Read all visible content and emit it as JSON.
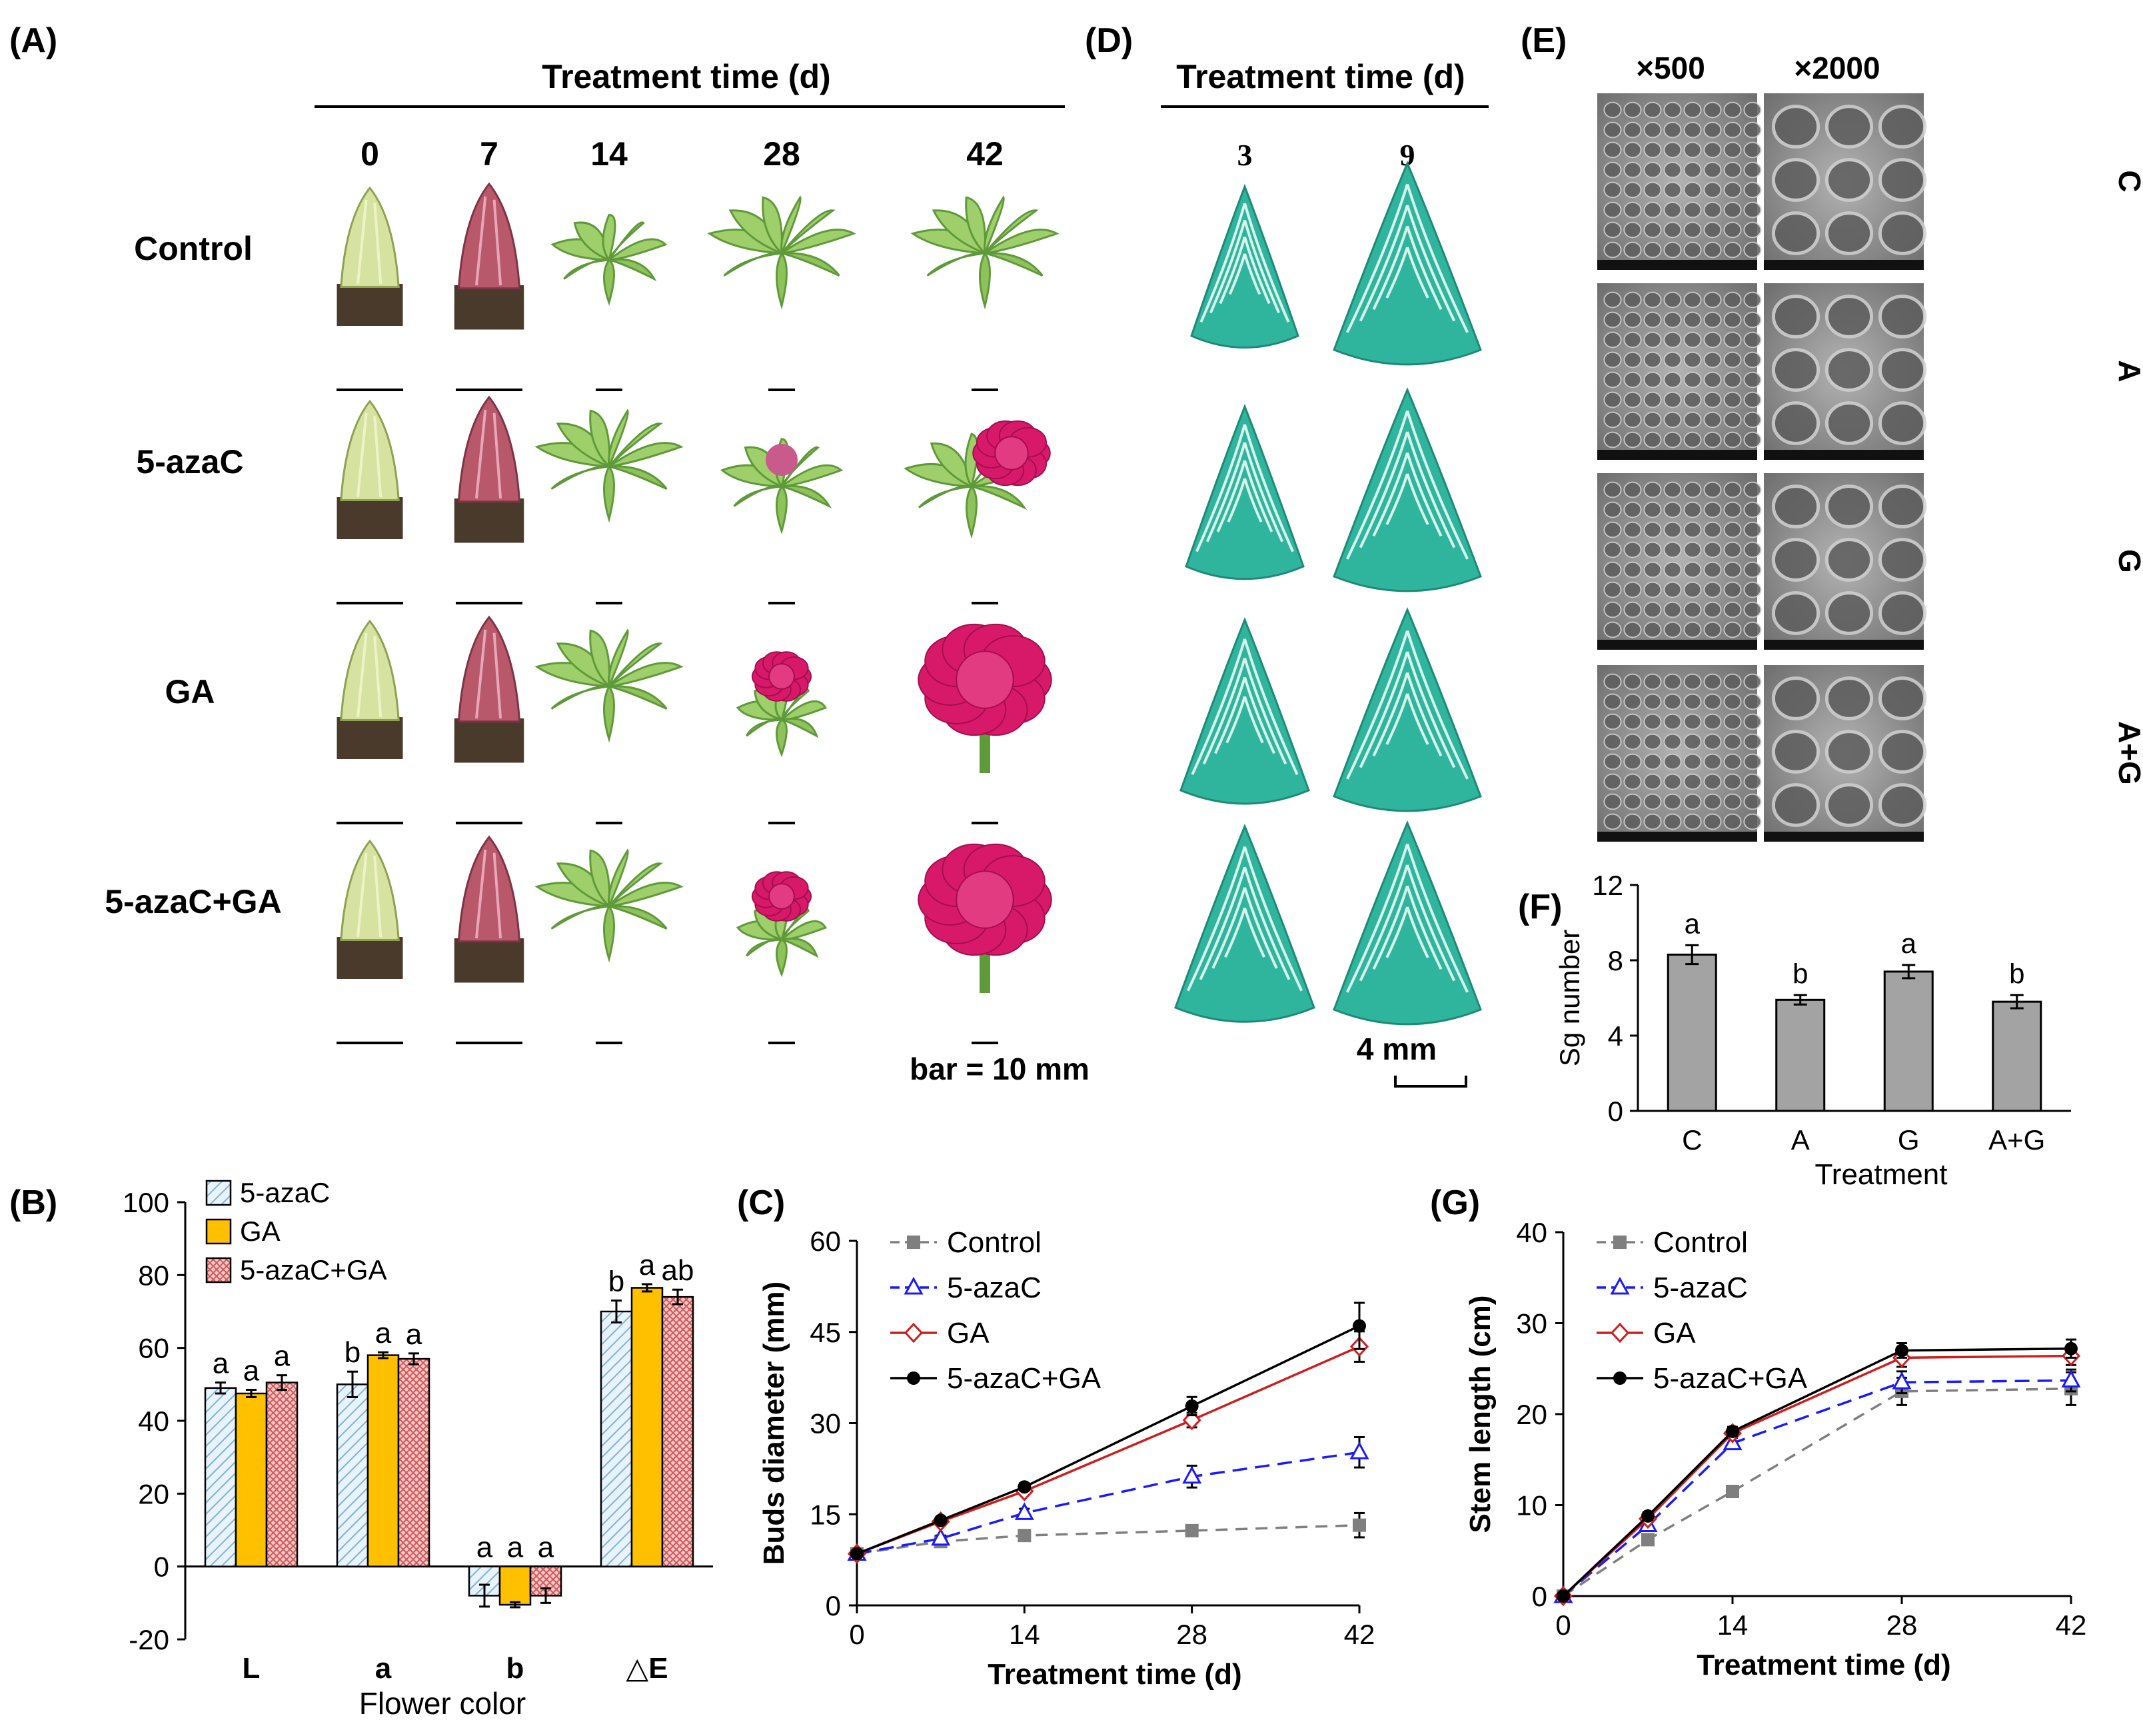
{
  "colors": {
    "plant_green": "#9fcf6a",
    "plant_dark": "#5f9a3a",
    "bud_red": "#b8586a",
    "flower_magenta": "#d8196a",
    "stain_teal": "#2fb59e",
    "sem_gray": "#8e8e8e",
    "bar_gray": "#a3a3a3",
    "azac_blue_hatch": "#9fc7e6",
    "ga_gold": "#ffc000",
    "azacga_red_hatch": "#e88f8f",
    "control_line": "#7f7f7f",
    "azac_line": "#1a1aff",
    "ga_line": "#cc1f1f",
    "azacga_line": "#000000"
  },
  "panel_A": {
    "label": "(A)",
    "header": "Treatment time (d)",
    "days": [
      "0",
      "7",
      "14",
      "28",
      "42"
    ],
    "rows": [
      {
        "name": "Control",
        "stages": [
          "bud",
          "bud-red",
          "leafy-small",
          "leafy",
          "leafy"
        ]
      },
      {
        "name": "5-azaC",
        "stages": [
          "bud",
          "bud-red",
          "leafy",
          "leafy-bud",
          "leafy-flower"
        ]
      },
      {
        "name": "GA",
        "stages": [
          "bud",
          "bud-red",
          "leafy",
          "flower-bud",
          "flower"
        ]
      },
      {
        "name": "5-azaC+GA",
        "stages": [
          "bud",
          "bud-red",
          "leafy",
          "flower-bud",
          "flower"
        ]
      }
    ],
    "scale_note": "bar = 10 mm"
  },
  "panel_D": {
    "label": "(D)",
    "header": "Treatment time (d)",
    "days": [
      "3",
      "9"
    ],
    "scale_note": "4 mm"
  },
  "panel_E": {
    "label": "(E)",
    "magnifications": [
      "×500",
      "×2000"
    ],
    "rows": [
      "C",
      "A",
      "G",
      "A+G"
    ]
  },
  "chart_data": [
    {
      "id": "F",
      "panel_label": "(F)",
      "type": "bar",
      "categories": [
        "C",
        "A",
        "G",
        "A+G"
      ],
      "values": [
        8.3,
        5.9,
        7.4,
        5.8
      ],
      "errors": [
        0.5,
        0.25,
        0.35,
        0.35
      ],
      "letters": [
        "a",
        "b",
        "a",
        "b"
      ],
      "xlabel": "Treatment",
      "ylabel": "Sg number",
      "ylim": [
        0,
        12
      ],
      "yticks": [
        "0",
        "4",
        "8",
        "12"
      ]
    },
    {
      "id": "B",
      "panel_label": "(B)",
      "type": "bar",
      "categories": [
        "L",
        "a",
        "b",
        "△E"
      ],
      "series": [
        {
          "name": "5-azaC",
          "values": [
            49,
            50,
            -8,
            70
          ],
          "errors": [
            1.5,
            3.5,
            3,
            3
          ],
          "letters": [
            "a",
            "b",
            "a",
            "b"
          ]
        },
        {
          "name": "GA",
          "values": [
            47.5,
            58,
            -10.5,
            76.5
          ],
          "errors": [
            1.0,
            0.8,
            0.7,
            1.0
          ],
          "letters": [
            "a",
            "a",
            "a",
            "a"
          ]
        },
        {
          "name": "5-azaC+GA",
          "values": [
            50.5,
            57,
            -8,
            74
          ],
          "errors": [
            2.0,
            1.5,
            2.0,
            2.0
          ],
          "letters": [
            "a",
            "a",
            "a",
            "ab"
          ]
        }
      ],
      "xlabel": "Flower color",
      "ylabel": "",
      "ylim": [
        -20,
        100
      ],
      "yticks": [
        "-20",
        "0",
        "20",
        "40",
        "60",
        "80",
        "100"
      ],
      "legend": "top-left"
    },
    {
      "id": "C",
      "panel_label": "(C)",
      "type": "line",
      "x": [
        0,
        7,
        14,
        28,
        42
      ],
      "series": [
        {
          "name": "Control",
          "values": [
            8.5,
            10.5,
            11.5,
            12.3,
            13.2
          ],
          "errors": [
            0.3,
            0.5,
            0.5,
            0.8,
            2.0
          ],
          "marker": "square"
        },
        {
          "name": "5-azaC",
          "values": [
            8.5,
            11.0,
            15.2,
            21.2,
            25.2
          ],
          "errors": [
            0.3,
            0.5,
            0.7,
            1.8,
            2.5
          ],
          "marker": "triangle"
        },
        {
          "name": "GA",
          "values": [
            8.5,
            13.8,
            18.8,
            30.5,
            42.6
          ],
          "errors": [
            0.3,
            0.5,
            0.6,
            1.2,
            2.5
          ],
          "marker": "diamond"
        },
        {
          "name": "5-azaC+GA",
          "values": [
            8.5,
            14.0,
            19.5,
            32.8,
            46.0
          ],
          "errors": [
            0.3,
            0.5,
            0.6,
            1.5,
            3.8
          ],
          "marker": "circle"
        }
      ],
      "xlabel": "Treatment time (d)",
      "ylabel": "Buds diameter (mm)",
      "xticks": [
        "0",
        "14",
        "28",
        "42"
      ],
      "yticks": [
        "0",
        "15",
        "30",
        "45",
        "60"
      ],
      "xlim": [
        0,
        42
      ],
      "ylim": [
        0,
        60
      ],
      "legend": "top-left"
    },
    {
      "id": "G",
      "panel_label": "(G)",
      "type": "line",
      "x": [
        0,
        7,
        14,
        28,
        42
      ],
      "series": [
        {
          "name": "Control",
          "values": [
            0,
            6.2,
            11.5,
            22.5,
            22.8
          ],
          "errors": [
            0.2,
            0.4,
            0.6,
            1.5,
            1.8
          ],
          "marker": "square"
        },
        {
          "name": "5-azaC",
          "values": [
            0,
            7.8,
            16.8,
            23.5,
            23.7
          ],
          "errors": [
            0.2,
            0.4,
            0.6,
            1.2,
            1.2
          ],
          "marker": "triangle"
        },
        {
          "name": "GA",
          "values": [
            0,
            8.5,
            17.9,
            26.2,
            26.4
          ],
          "errors": [
            0.2,
            0.4,
            0.5,
            1.0,
            1.0
          ],
          "marker": "diamond"
        },
        {
          "name": "5-azaC+GA",
          "values": [
            0,
            8.8,
            18.1,
            27.0,
            27.2
          ],
          "errors": [
            0.2,
            0.4,
            0.5,
            0.8,
            1.0
          ],
          "marker": "circle"
        }
      ],
      "xlabel": "Treatment time (d)",
      "ylabel": "Stem length (cm)",
      "xticks": [
        "0",
        "14",
        "28",
        "42"
      ],
      "yticks": [
        "0",
        "10",
        "20",
        "30",
        "40"
      ],
      "xlim": [
        0,
        42
      ],
      "ylim": [
        0,
        40
      ],
      "legend": "top-left"
    }
  ]
}
